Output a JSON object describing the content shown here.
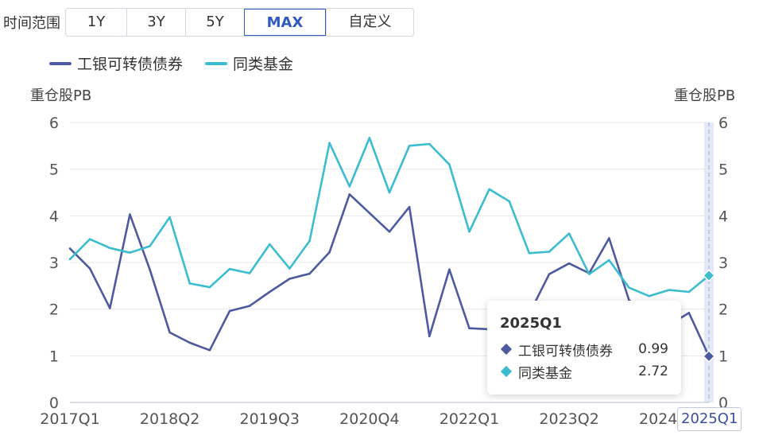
{
  "range": {
    "label": "时间范围",
    "options": [
      "1Y",
      "3Y",
      "5Y",
      "MAX",
      "自定义"
    ],
    "active": "MAX"
  },
  "units": {
    "left": "重仓股PB",
    "right": "重仓股PB"
  },
  "tooltip": {
    "title": "2025Q1",
    "rows": [
      {
        "name": "工银可转债债券",
        "value": "0.99",
        "color": "#4e5aa0"
      },
      {
        "name": "同类基金",
        "value": "2.72",
        "color": "#3bbccf"
      }
    ]
  },
  "chart_data": {
    "type": "line",
    "x": [
      "2017Q1",
      "2017Q2",
      "2017Q3",
      "2017Q4",
      "2018Q1",
      "2018Q2",
      "2018Q3",
      "2018Q4",
      "2019Q1",
      "2019Q2",
      "2019Q3",
      "2019Q4",
      "2020Q1",
      "2020Q2",
      "2020Q3",
      "2020Q4",
      "2021Q1",
      "2021Q2",
      "2021Q3",
      "2021Q4",
      "2022Q1",
      "2022Q2",
      "2022Q3",
      "2022Q4",
      "2023Q1",
      "2023Q2",
      "2023Q3",
      "2023Q4",
      "2024Q1",
      "2024Q2",
      "2024Q3",
      "2024Q4",
      "2025Q1"
    ],
    "xticks": [
      "2017Q1",
      "2018Q2",
      "2019Q3",
      "2020Q4",
      "2022Q1",
      "2023Q2",
      "2024Q3",
      "2025Q1"
    ],
    "ylim": [
      0,
      6
    ],
    "yticks": [
      0,
      1,
      2,
      3,
      4,
      5,
      6
    ],
    "ylabel_left": "重仓股PB",
    "ylabel_right": "重仓股PB",
    "legend_position": "top-left",
    "series": [
      {
        "name": "工银可转债债券",
        "color": "#4e5aa0",
        "values": [
          3.3,
          2.87,
          2.02,
          4.03,
          2.85,
          1.5,
          1.28,
          1.12,
          1.96,
          2.07,
          2.37,
          2.65,
          2.76,
          3.22,
          4.46,
          4.06,
          3.66,
          4.19,
          1.42,
          2.85,
          1.59,
          1.57,
          1.7,
          1.9,
          2.75,
          2.98,
          2.77,
          3.52,
          2.19,
          1.85,
          1.66,
          1.92,
          0.99
        ]
      },
      {
        "name": "同类基金",
        "color": "#3bbccf",
        "values": [
          3.07,
          3.5,
          3.31,
          3.21,
          3.35,
          3.97,
          2.55,
          2.47,
          2.86,
          2.77,
          3.39,
          2.87,
          3.46,
          5.56,
          4.63,
          5.67,
          4.5,
          5.5,
          5.54,
          5.1,
          3.66,
          4.57,
          4.31,
          3.2,
          3.23,
          3.62,
          2.75,
          3.05,
          2.46,
          2.28,
          2.41,
          2.37,
          2.72
        ]
      }
    ]
  }
}
